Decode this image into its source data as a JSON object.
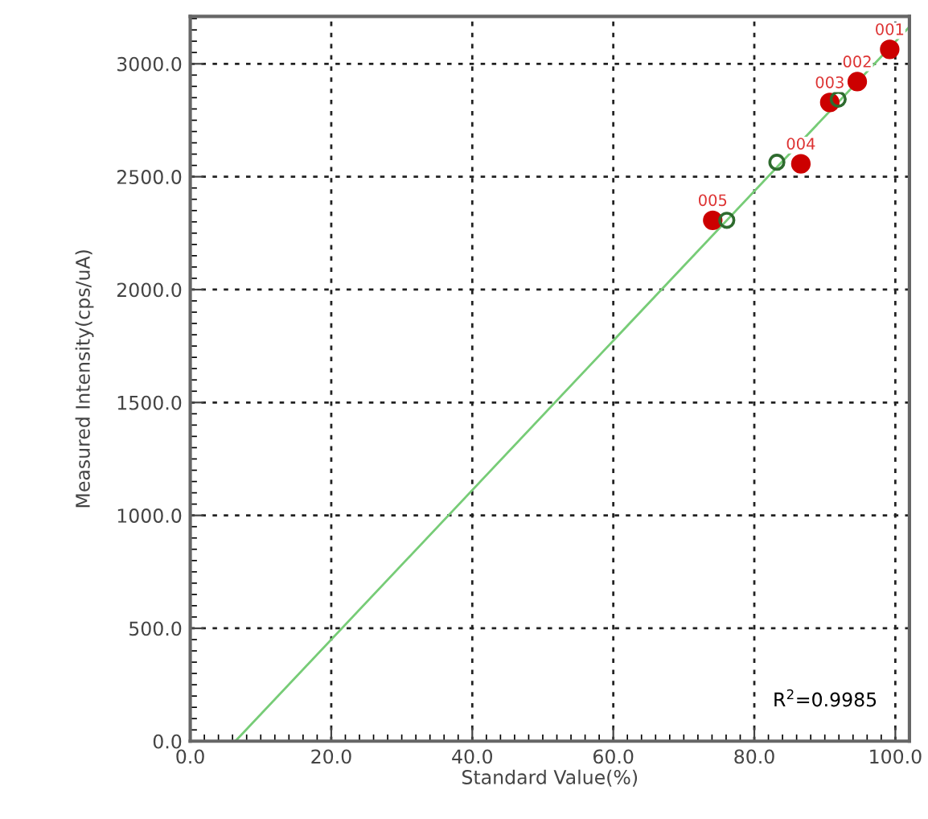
{
  "chart_data": {
    "type": "scatter",
    "xlabel": "Standard Value(%)",
    "ylabel": "Measured Intensity(cps/uA)",
    "xlim": [
      0,
      102
    ],
    "ylim": [
      0,
      3210
    ],
    "xticks": [
      {
        "value": 0,
        "label": "0.0"
      },
      {
        "value": 20,
        "label": "20.0"
      },
      {
        "value": 40,
        "label": "40.0"
      },
      {
        "value": 60,
        "label": "60.0"
      },
      {
        "value": 80,
        "label": "80.0"
      },
      {
        "value": 100,
        "label": "100.0"
      }
    ],
    "yticks": [
      {
        "value": 0,
        "label": "0.0"
      },
      {
        "value": 500,
        "label": "500.0"
      },
      {
        "value": 1000,
        "label": "1000.0"
      },
      {
        "value": 1500,
        "label": "1500.0"
      },
      {
        "value": 2000,
        "label": "2000.0"
      },
      {
        "value": 2500,
        "label": "2500.0"
      },
      {
        "value": 3000,
        "label": "3000.0"
      }
    ],
    "grid": true,
    "series": [
      {
        "type": "line",
        "color": "#77cc77",
        "x": [
          6.4,
          102
        ],
        "values": [
          0,
          3164
        ]
      },
      {
        "marker": "circle",
        "color": "#2e6b2e",
        "x": [
          76.1,
          83.2,
          91.9
        ],
        "values": [
          2307,
          2564,
          2843
        ]
      },
      {
        "marker": "circle",
        "color": "#cc0000",
        "x": [
          99.2,
          94.6,
          90.7,
          86.6,
          74.1
        ],
        "values": [
          3064,
          2921,
          2829,
          2557,
          2307
        ]
      }
    ],
    "annotations": [
      {
        "text": "001",
        "x": 99.2,
        "y": 3064
      },
      {
        "text": "002",
        "x": 94.6,
        "y": 2921
      },
      {
        "text": "003",
        "x": 90.7,
        "y": 2829
      },
      {
        "text": "004",
        "x": 86.6,
        "y": 2557
      },
      {
        "text": "005",
        "x": 74.1,
        "y": 2307
      },
      "R$^{2}$=0.9985"
    ]
  }
}
